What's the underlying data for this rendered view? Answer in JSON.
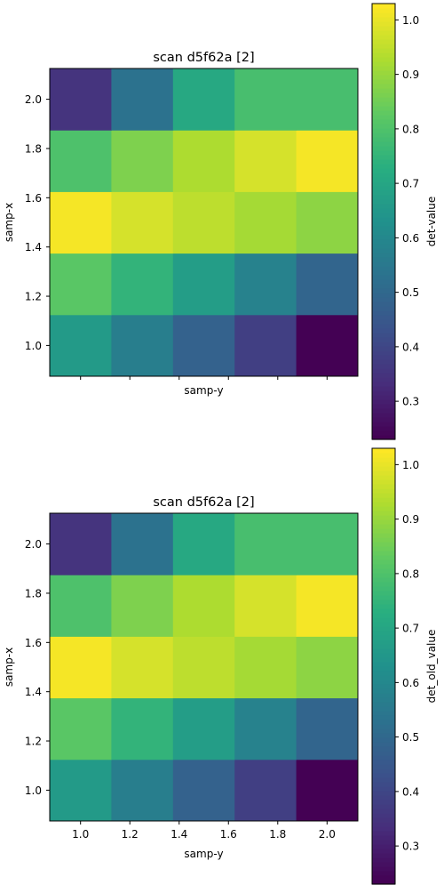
{
  "chart_data": [
    {
      "type": "heatmap",
      "title": "scan d5f62a [2]",
      "xlabel": "samp-y",
      "ylabel": "samp-x",
      "x": [
        1.0,
        1.2,
        1.4,
        1.6,
        1.8,
        2.0
      ],
      "x_ticks": [],
      "y": [
        1.0,
        1.2,
        1.4,
        1.6,
        1.8,
        2.0
      ],
      "y_ticks": [
        "1.0",
        "1.2",
        "1.4",
        "1.6",
        "1.8",
        "2.0"
      ],
      "x_centers": [
        1.0,
        1.25,
        1.5,
        1.75,
        2.0
      ],
      "y_centers": [
        1.0,
        1.25,
        1.5,
        1.75,
        2.0
      ],
      "xlim": [
        0.875,
        2.125
      ],
      "ylim": [
        0.875,
        2.125
      ],
      "values": [
        [
          0.66,
          0.57,
          0.48,
          0.38,
          0.23
        ],
        [
          0.82,
          0.75,
          0.67,
          0.58,
          0.49
        ],
        [
          1.02,
          0.98,
          0.95,
          0.92,
          0.89
        ],
        [
          0.8,
          0.87,
          0.93,
          0.98,
          1.02
        ],
        [
          0.35,
          0.53,
          0.71,
          0.79,
          0.79
        ]
      ],
      "colorbar": {
        "label": "det-value",
        "range": [
          0.23,
          1.03
        ],
        "ticks": [
          "0.3",
          "0.4",
          "0.5",
          "0.6",
          "0.7",
          "0.8",
          "0.9",
          "1.0"
        ],
        "colormap": "viridis"
      }
    },
    {
      "type": "heatmap",
      "title": "scan d5f62a [2]",
      "xlabel": "samp-y",
      "ylabel": "samp-x",
      "x": [
        1.0,
        1.2,
        1.4,
        1.6,
        1.8,
        2.0
      ],
      "x_ticks": [
        "1.0",
        "1.2",
        "1.4",
        "1.6",
        "1.8",
        "2.0"
      ],
      "y": [
        1.0,
        1.2,
        1.4,
        1.6,
        1.8,
        2.0
      ],
      "y_ticks": [
        "1.0",
        "1.2",
        "1.4",
        "1.6",
        "1.8",
        "2.0"
      ],
      "x_centers": [
        1.0,
        1.25,
        1.5,
        1.75,
        2.0
      ],
      "y_centers": [
        1.0,
        1.25,
        1.5,
        1.75,
        2.0
      ],
      "xlim": [
        0.875,
        2.125
      ],
      "ylim": [
        0.875,
        2.125
      ],
      "values": [
        [
          0.66,
          0.57,
          0.48,
          0.38,
          0.23
        ],
        [
          0.82,
          0.75,
          0.67,
          0.58,
          0.49
        ],
        [
          1.02,
          0.98,
          0.95,
          0.92,
          0.89
        ],
        [
          0.8,
          0.87,
          0.93,
          0.98,
          1.02
        ],
        [
          0.35,
          0.53,
          0.71,
          0.79,
          0.79
        ]
      ],
      "colorbar": {
        "label": "det_old_value",
        "range": [
          0.23,
          1.03
        ],
        "ticks": [
          "0.3",
          "0.4",
          "0.5",
          "0.6",
          "0.7",
          "0.8",
          "0.9",
          "1.0"
        ],
        "colormap": "viridis"
      }
    }
  ]
}
